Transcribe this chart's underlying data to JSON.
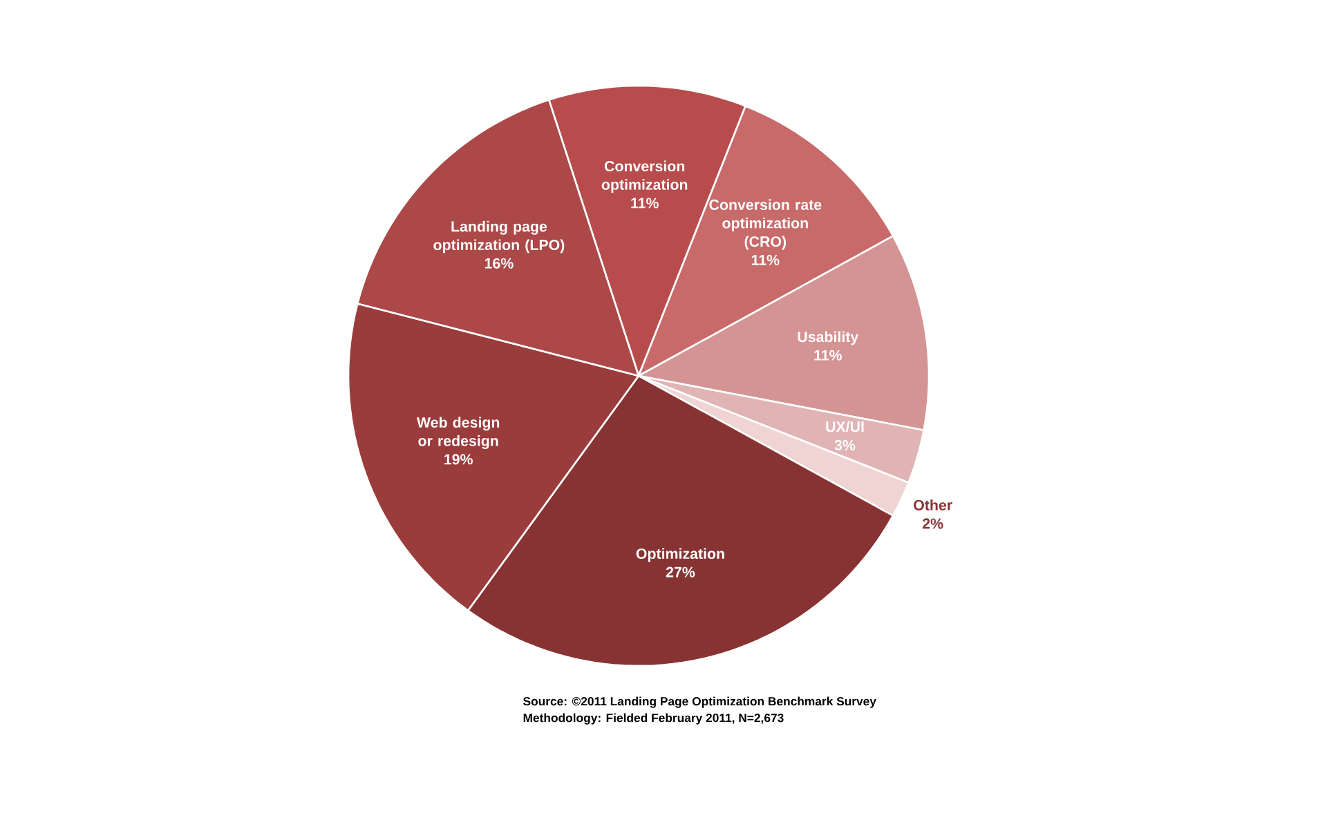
{
  "chart_data": {
    "type": "pie",
    "categories": [
      "Conversion optimization",
      "Conversion rate optimization (CRO)",
      "Usability",
      "UX/UI",
      "Other",
      "Optimization",
      "Web design or redesign",
      "Landing page optimization (LPO)"
    ],
    "values": [
      11,
      11,
      11,
      3,
      2,
      27,
      19,
      16
    ],
    "value_labels": [
      "11%",
      "11%",
      "11%",
      "3%",
      "2%",
      "27%",
      "19%",
      "16%"
    ],
    "colors": [
      "#b84c4c",
      "#c86a6a",
      "#d49494",
      "#e0b4b4",
      "#f0d4d4",
      "#883333",
      "#9a3c3c",
      "#ac4848"
    ],
    "annotations": [
      "Source: ©2011 Landing Page Optimization Benchmark Survey",
      "Methodology: Fielded February 2011, N=2,673"
    ]
  }
}
